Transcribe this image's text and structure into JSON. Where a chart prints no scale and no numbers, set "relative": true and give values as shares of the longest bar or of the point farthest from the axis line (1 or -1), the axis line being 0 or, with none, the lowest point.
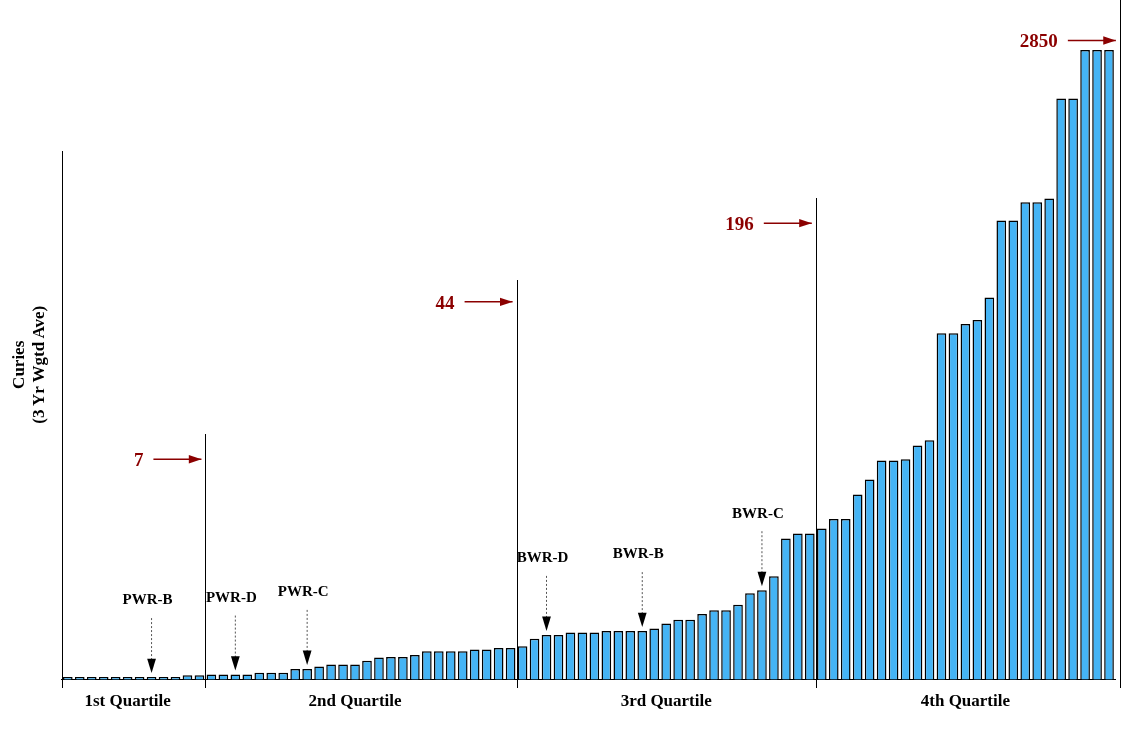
{
  "chart_data": {
    "type": "bar",
    "relative": true,
    "ylabel": "Curies\n(3 Yr Wgtd Ave)",
    "color": "#45b4f5",
    "categories": [
      null,
      null,
      null,
      null,
      null,
      "1st Quartile",
      null,
      null,
      null,
      null,
      null,
      null,
      null,
      null,
      null,
      null,
      null,
      null,
      null,
      null,
      null,
      null,
      null,
      null,
      "2nd Quartile",
      null,
      null,
      null,
      null,
      null,
      null,
      null,
      null,
      null,
      null,
      null,
      null,
      null,
      null,
      null,
      null,
      null,
      null,
      null,
      null,
      null,
      null,
      null,
      null,
      null,
      "3rd Quartile",
      null,
      null,
      null,
      null,
      null,
      null,
      null,
      null,
      null,
      null,
      null,
      null,
      null,
      null,
      null,
      null,
      null,
      null,
      null,
      null,
      null,
      null,
      null,
      null,
      "4th Quartile",
      null,
      null,
      null,
      null,
      null,
      null,
      null,
      null,
      null,
      null,
      null,
      null
    ],
    "values": [
      0.004,
      0.004,
      0.004,
      0.004,
      0.004,
      0.004,
      0.004,
      0.004,
      0.004,
      0.004,
      0.007,
      0.007,
      0.008,
      0.008,
      0.008,
      0.008,
      0.011,
      0.011,
      0.011,
      0.017,
      0.017,
      0.021,
      0.024,
      0.024,
      0.024,
      0.03,
      0.035,
      0.036,
      0.036,
      0.039,
      0.045,
      0.045,
      0.045,
      0.045,
      0.048,
      0.048,
      0.05,
      0.05,
      0.053,
      0.065,
      0.071,
      0.071,
      0.075,
      0.075,
      0.075,
      0.077,
      0.077,
      0.077,
      0.077,
      0.081,
      0.089,
      0.095,
      0.095,
      0.104,
      0.11,
      0.11,
      0.119,
      0.137,
      0.142,
      0.164,
      0.224,
      0.232,
      0.232,
      0.24,
      0.255,
      0.255,
      0.294,
      0.318,
      0.348,
      0.348,
      0.35,
      0.372,
      0.38,
      0.55,
      0.55,
      0.565,
      0.571,
      0.607,
      0.729,
      0.729,
      0.758,
      0.758,
      0.764,
      0.923,
      0.923,
      1,
      1,
      1
    ],
    "annotations": [
      "7",
      "44",
      "196",
      "2850",
      "PWR-B",
      "PWR-D",
      "PWR-C",
      "BWR-D",
      "BWR-B",
      "BWR-C"
    ]
  }
}
